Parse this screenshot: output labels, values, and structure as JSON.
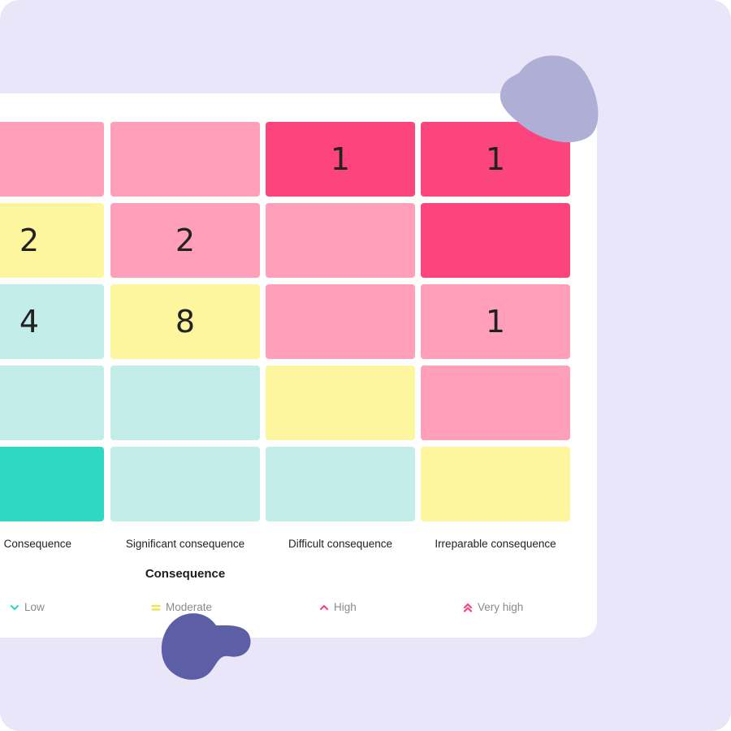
{
  "matrix": {
    "rows": [
      [
        "",
        "",
        "1",
        "1"
      ],
      [
        "2",
        "2",
        "",
        ""
      ],
      [
        "4",
        "8",
        "",
        "1"
      ],
      [
        "",
        "",
        "",
        ""
      ],
      [
        "",
        "",
        "",
        ""
      ]
    ],
    "columns": [
      "onsequence",
      "Significant consequence",
      "Difficult consequence",
      "Irreparable consequence"
    ],
    "axis_title": "Consequence"
  },
  "legend": {
    "low": "Low",
    "moderate": "Moderate",
    "high": "High",
    "very_high": "Very high"
  },
  "colors": {
    "low": "#2ed8c3",
    "low_light": "#c3ede9",
    "moderate": "#fef69e",
    "high": "#ff9fba",
    "very_high": "#fb457c",
    "background": "#e8e6f8"
  }
}
